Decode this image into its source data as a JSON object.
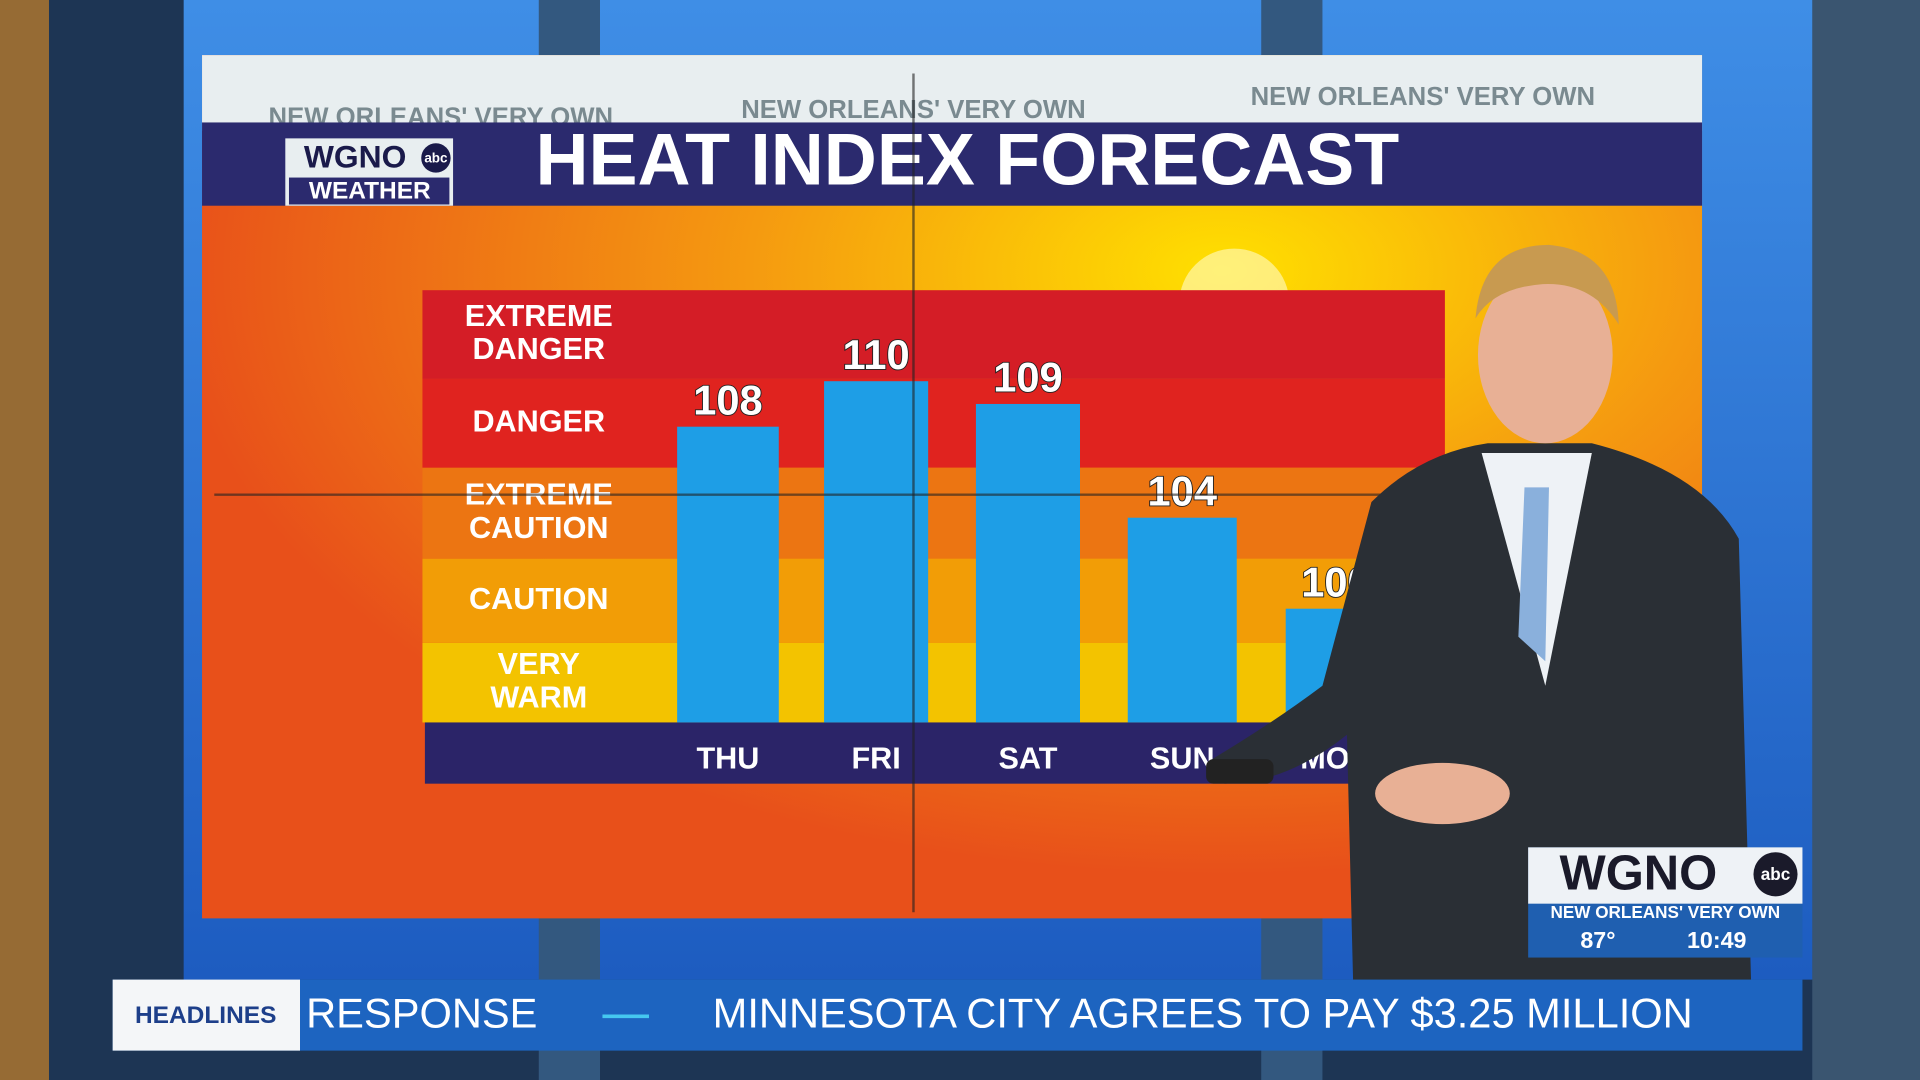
{
  "chart_data": {
    "type": "bar",
    "title": "HEAT INDEX FORECAST",
    "categories": [
      "THU",
      "FRI",
      "SAT",
      "SUN",
      "MON"
    ],
    "values": [
      108,
      110,
      109,
      104,
      100
    ],
    "color": "#1e9ee6",
    "ylim": [
      95,
      114
    ],
    "bands": [
      {
        "label": [
          "VERY",
          "WARM"
        ],
        "from": 95,
        "to": 98.5,
        "color": "#f3c300"
      },
      {
        "label": [
          "CAUTION"
        ],
        "from": 98.5,
        "to": 102.2,
        "color": "#f29d06"
      },
      {
        "label": [
          "EXTREME",
          "CAUTION"
        ],
        "from": 102.2,
        "to": 106.2,
        "color": "#ec7512"
      },
      {
        "label": [
          "DANGER"
        ],
        "from": 106.2,
        "to": 110.1,
        "color": "#e0231f"
      },
      {
        "label": [
          "EXTREME",
          "DANGER"
        ],
        "from": 110.1,
        "to": 114,
        "color": "#d41d26"
      }
    ]
  },
  "panel": {
    "tagline": "NEW ORLEANS' VERY OWN",
    "logo": "WGNO",
    "network": "abc",
    "logo_sub": "WEATHER"
  },
  "bug": {
    "logo": "WGNO",
    "network": "abc",
    "tagline": "NEW ORLEANS' VERY OWN",
    "temperature": "87°",
    "time": "10:49"
  },
  "ticker": {
    "label": "HEADLINES",
    "items": [
      "RESPONSE",
      "MINNESOTA CITY AGREES TO PAY $3.25 MILLION"
    ]
  }
}
